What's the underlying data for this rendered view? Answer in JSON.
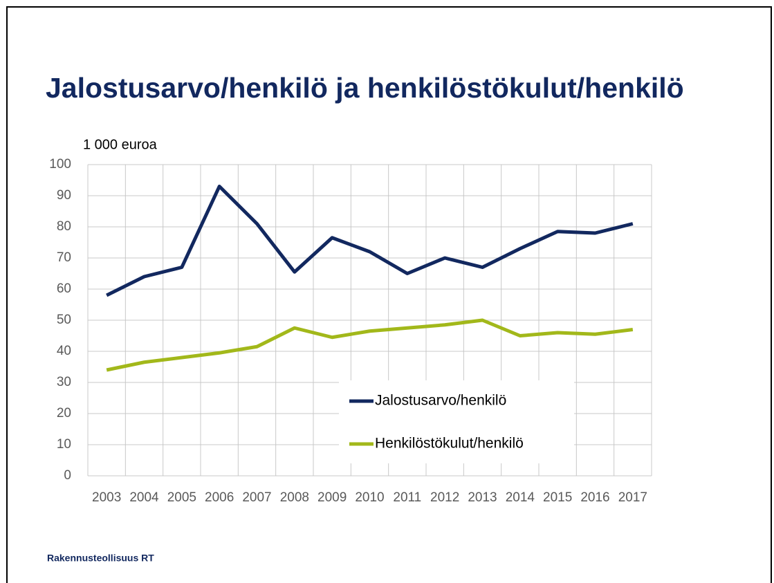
{
  "chart_data": {
    "type": "line",
    "title": "Jalostusarvo/henkilö ja henkilöstökulut/henkilö",
    "ylabel": "1 000 euroa",
    "footer": "Rakennusteollisuus RT",
    "categories": [
      "2003",
      "2004",
      "2005",
      "2006",
      "2007",
      "2008",
      "2009",
      "2010",
      "2011",
      "2012",
      "2013",
      "2014",
      "2015",
      "2016",
      "2017"
    ],
    "series": [
      {
        "name": "Jalostusarvo/henkilö",
        "color": "#12285f",
        "values": [
          58,
          64,
          67,
          93,
          81,
          65.5,
          76.5,
          72,
          65,
          70,
          67,
          73,
          78.5,
          78,
          81
        ]
      },
      {
        "name": "Henkilöstökulut/henkilö",
        "color": "#a2b81a",
        "values": [
          34,
          36.5,
          38,
          39.5,
          41.5,
          47.5,
          44.5,
          46.5,
          47.5,
          48.5,
          50,
          45,
          46,
          45.5,
          47
        ]
      }
    ],
    "ylim": [
      0,
      100
    ],
    "yticks": [
      0,
      10,
      20,
      30,
      40,
      50,
      60,
      70,
      80,
      90,
      100
    ],
    "grid": true,
    "legend": "bottom-center"
  }
}
